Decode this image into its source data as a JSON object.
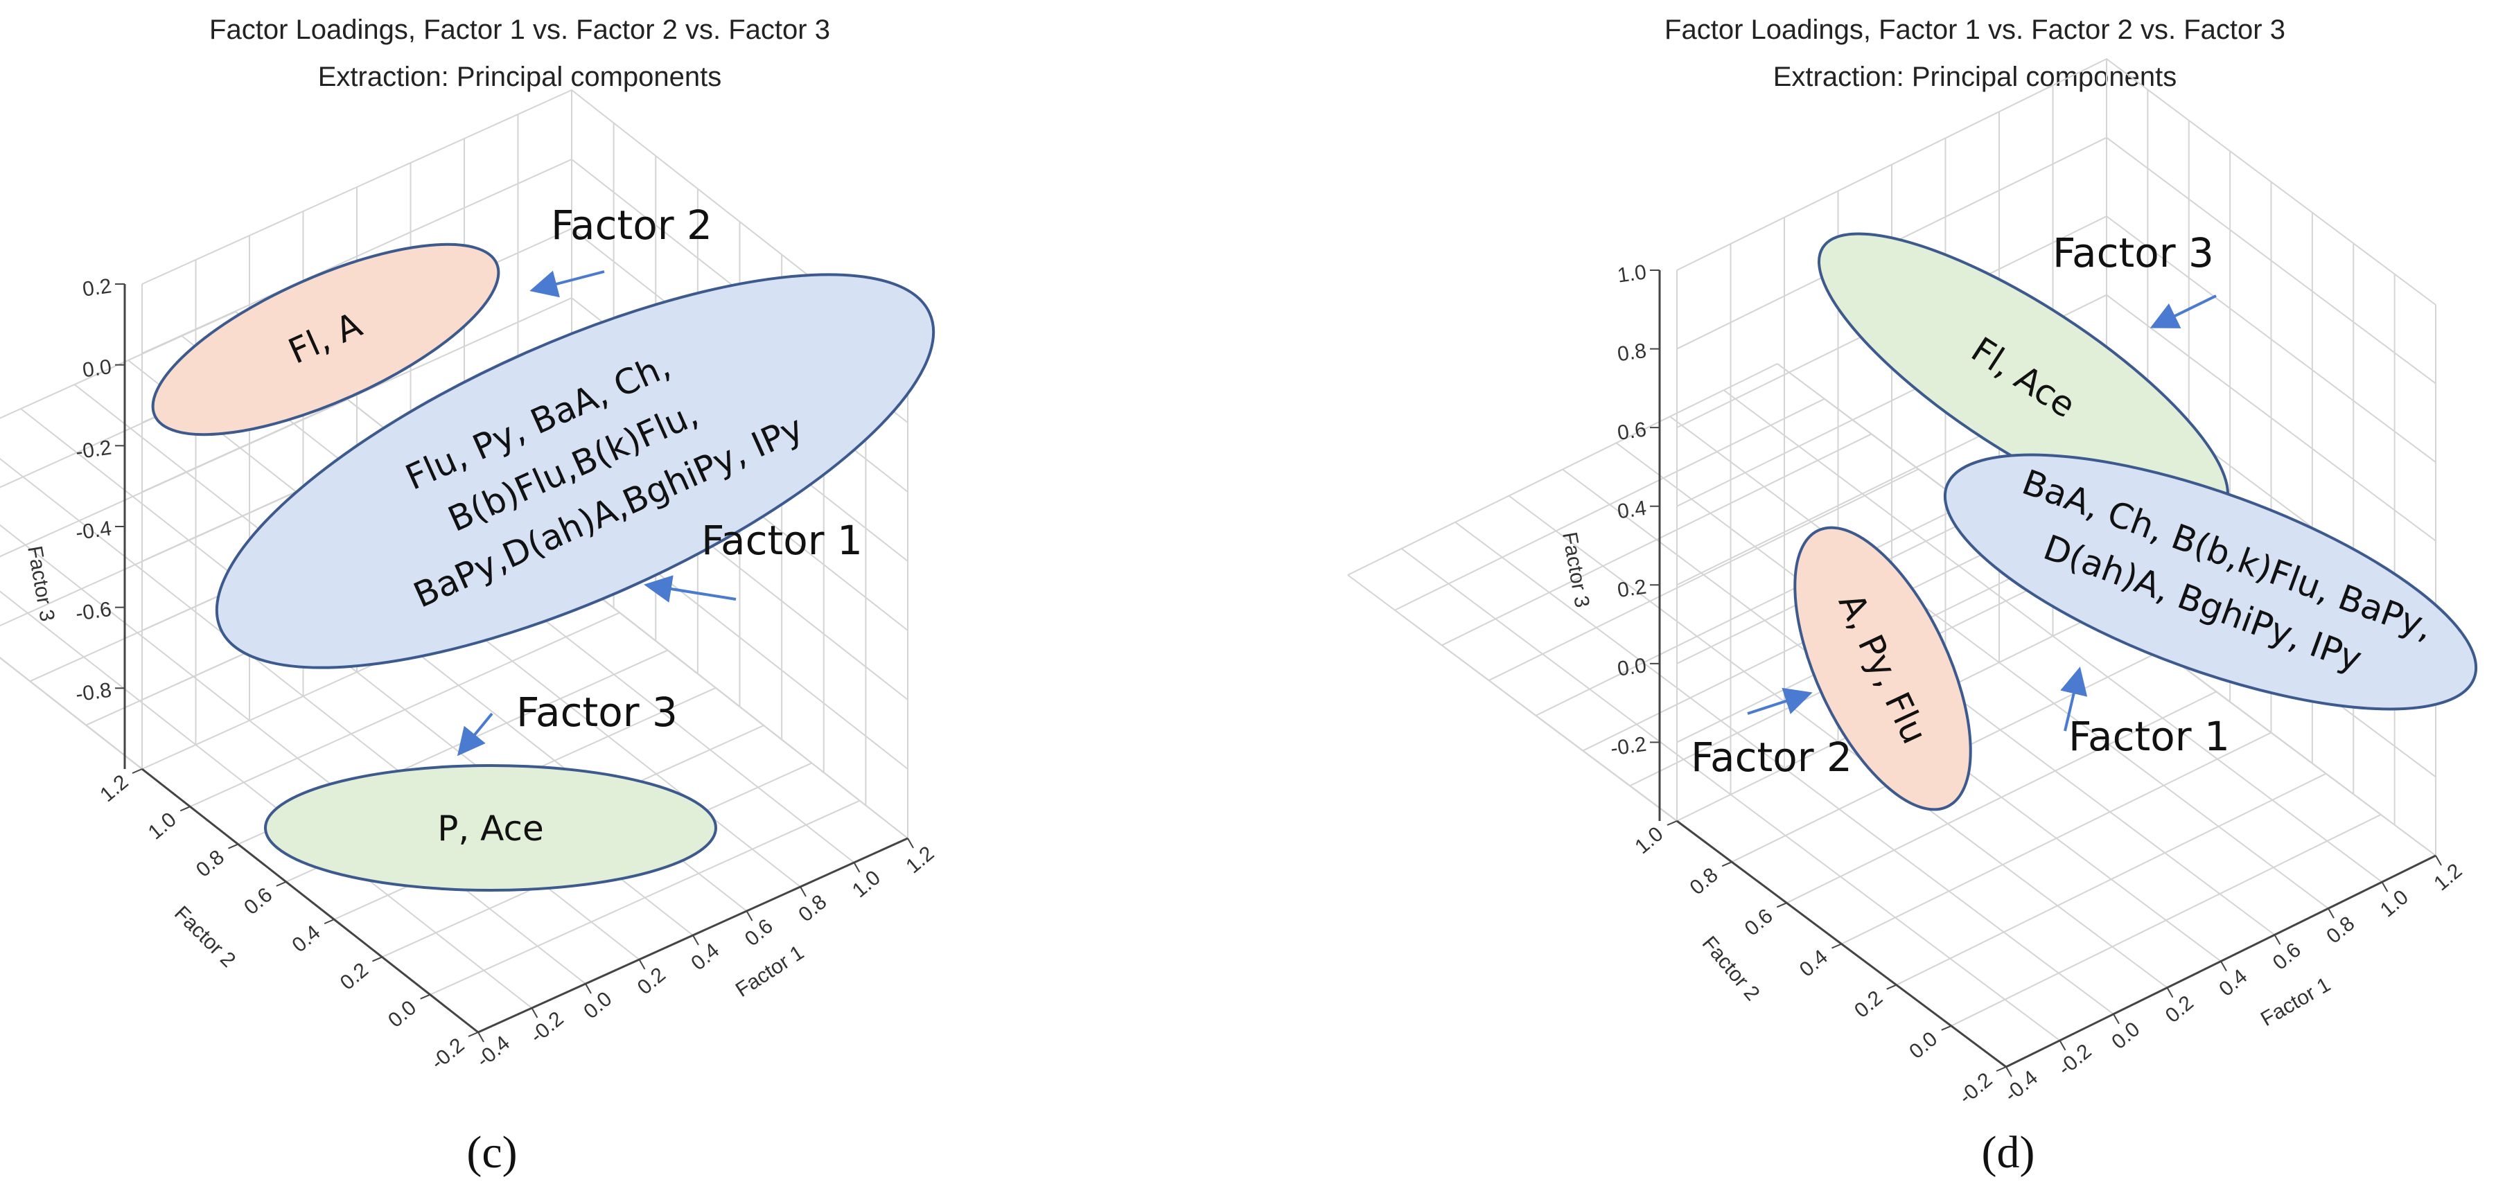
{
  "chart_data": [
    {
      "type": "scatter",
      "panel_label": "(c)",
      "title": "Factor Loadings, Factor 1 vs. Factor 2 vs. Factor 3",
      "subtitle": "Extraction: Principal components",
      "xlabel": "Factor 1",
      "ylabel": "Factor 2",
      "zlabel": "Factor 3",
      "xticks": [
        "-0.4",
        "-0.2",
        "0.0",
        "0.2",
        "0.4",
        "0.6",
        "0.8",
        "1.0",
        "1.2"
      ],
      "yticks": [
        "-0.2",
        "0.0",
        "0.2",
        "0.4",
        "0.6",
        "0.8",
        "1.0",
        "1.2"
      ],
      "zticks": [
        "0.2",
        "0.0",
        "-0.2",
        "-0.4",
        "-0.6",
        "-0.8"
      ],
      "xlim": [
        -0.4,
        1.2
      ],
      "ylim": [
        -0.2,
        1.2
      ],
      "zlim": [
        -1.0,
        0.2
      ],
      "clusters": [
        {
          "factor": "Factor 2",
          "lines": [
            "Fl, A"
          ],
          "color": "#f9dccd"
        },
        {
          "factor": "Factor 1",
          "lines": [
            "Flu, Py, BaA, Ch,",
            "B(b)Flu,B(k)Flu,",
            "BaPy,D(ah)A,BghiPy, IPy"
          ],
          "color": "#d6e1f3"
        },
        {
          "factor": "Factor 3",
          "lines": [
            "P, Ace"
          ],
          "color": "#e2efd8"
        }
      ]
    },
    {
      "type": "scatter",
      "panel_label": "(d)",
      "title": "Factor Loadings, Factor 1 vs. Factor 2 vs. Factor 3",
      "subtitle": "Extraction: Principal components",
      "xlabel": "Factor 1",
      "ylabel": "Factor 2",
      "zlabel": "Factor 3",
      "xticks": [
        "-0.4",
        "-0.2",
        "0.0",
        "0.2",
        "0.4",
        "0.6",
        "0.8",
        "1.0",
        "1.2"
      ],
      "yticks": [
        "-0.2",
        "0.0",
        "0.2",
        "0.4",
        "0.6",
        "0.8",
        "1.0"
      ],
      "zticks": [
        "1.0",
        "0.8",
        "0.6",
        "0.4",
        "0.2",
        "0.0",
        "-0.2"
      ],
      "xlim": [
        -0.4,
        1.2
      ],
      "ylim": [
        -0.2,
        1.0
      ],
      "zlim": [
        -0.4,
        1.0
      ],
      "clusters": [
        {
          "factor": "Factor 3",
          "lines": [
            "Fl, Ace"
          ],
          "color": "#e2efd8"
        },
        {
          "factor": "Factor 1",
          "lines": [
            "BaA, Ch, B(b,k)Flu, BaPy,",
            "D(ah)A, BghiPy, IPy"
          ],
          "color": "#d6e1f3"
        },
        {
          "factor": "Factor 2",
          "lines": [
            "A, Py, Flu"
          ],
          "color": "#f9dccd"
        }
      ]
    }
  ],
  "colors": {
    "ellipse_stroke": "#3d5a8f",
    "arrow": "#4a7bd0",
    "grid": "#d4d4d4"
  }
}
